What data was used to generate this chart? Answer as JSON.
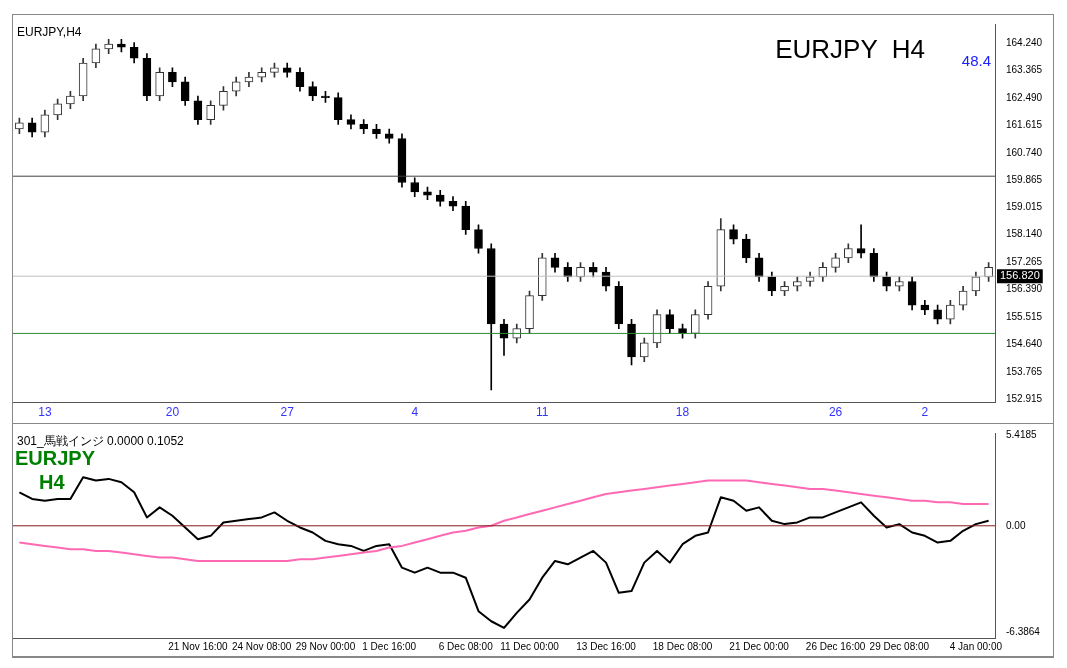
{
  "chart_data": [
    {
      "type": "candlestick",
      "title": "EURJPY  H4",
      "categories": [
        null,
        null,
        "13",
        null,
        null,
        null,
        null,
        null,
        null,
        null,
        null,
        null,
        "20",
        null,
        null,
        null,
        null,
        null,
        null,
        null,
        null,
        "27",
        null,
        null,
        null,
        null,
        null,
        null,
        null,
        null,
        null,
        "4",
        null,
        null,
        null,
        null,
        null,
        null,
        null,
        null,
        null,
        "11",
        null,
        null,
        null,
        null,
        null,
        null,
        null,
        null,
        null,
        null,
        "18",
        null,
        null,
        null,
        null,
        null,
        null,
        null,
        null,
        null,
        null,
        null,
        "26",
        null,
        null,
        null,
        null,
        null,
        null,
        "2",
        null,
        null,
        null,
        null,
        null
      ],
      "ohlc": [
        [
          161.5,
          161.85,
          161.35,
          161.7
        ],
        [
          161.7,
          161.85,
          161.25,
          161.4
        ],
        [
          161.4,
          162.1,
          161.25,
          161.95
        ],
        [
          161.95,
          162.45,
          161.8,
          162.3
        ],
        [
          162.3,
          162.7,
          162.15,
          162.55
        ],
        [
          162.55,
          163.75,
          162.4,
          163.6
        ],
        [
          163.6,
          164.2,
          163.45,
          164.05
        ],
        [
          164.05,
          164.35,
          163.9,
          164.2
        ],
        [
          164.2,
          164.35,
          163.95,
          164.1
        ],
        [
          164.1,
          164.25,
          163.6,
          163.75
        ],
        [
          163.75,
          163.9,
          162.4,
          162.55
        ],
        [
          162.55,
          163.45,
          162.4,
          163.3
        ],
        [
          163.3,
          163.45,
          162.85,
          163.0
        ],
        [
          163.0,
          163.15,
          162.25,
          162.4
        ],
        [
          162.4,
          162.55,
          161.65,
          161.8
        ],
        [
          161.8,
          162.4,
          161.65,
          162.25
        ],
        [
          162.25,
          162.85,
          162.1,
          162.7
        ],
        [
          162.7,
          163.15,
          162.55,
          163.0
        ],
        [
          163.0,
          163.3,
          162.85,
          163.15
        ],
        [
          163.15,
          163.45,
          163.0,
          163.3
        ],
        [
          163.3,
          163.6,
          163.15,
          163.45
        ],
        [
          163.45,
          163.6,
          163.15,
          163.3
        ],
        [
          163.3,
          163.45,
          162.7,
          162.85
        ],
        [
          162.85,
          163.0,
          162.4,
          162.55
        ],
        [
          162.55,
          162.7,
          162.35,
          162.5
        ],
        [
          162.5,
          162.65,
          161.65,
          161.8
        ],
        [
          161.8,
          161.95,
          161.5,
          161.65
        ],
        [
          161.65,
          161.8,
          161.35,
          161.5
        ],
        [
          161.5,
          161.65,
          161.2,
          161.35
        ],
        [
          161.35,
          161.5,
          161.05,
          161.2
        ],
        [
          161.2,
          161.35,
          159.65,
          159.8
        ],
        [
          159.8,
          159.95,
          159.35,
          159.5
        ],
        [
          159.5,
          159.65,
          159.25,
          159.4
        ],
        [
          159.4,
          159.55,
          159.05,
          159.2
        ],
        [
          159.2,
          159.35,
          158.9,
          159.05
        ],
        [
          159.05,
          159.2,
          158.15,
          158.3
        ],
        [
          158.3,
          158.45,
          157.55,
          157.7
        ],
        [
          157.7,
          157.85,
          153.2,
          155.3
        ],
        [
          155.3,
          155.45,
          154.3,
          154.85
        ],
        [
          154.85,
          155.3,
          154.7,
          155.15
        ],
        [
          155.15,
          156.35,
          155.0,
          156.2
        ],
        [
          156.2,
          157.55,
          156.05,
          157.4
        ],
        [
          157.4,
          157.55,
          156.95,
          157.1
        ],
        [
          157.1,
          157.25,
          156.65,
          156.8
        ],
        [
          156.8,
          157.25,
          156.65,
          157.1
        ],
        [
          157.1,
          157.25,
          156.8,
          156.95
        ],
        [
          156.95,
          157.1,
          156.35,
          156.5
        ],
        [
          156.5,
          156.65,
          155.15,
          155.3
        ],
        [
          155.3,
          155.45,
          154.0,
          154.25
        ],
        [
          154.25,
          154.85,
          154.1,
          154.7
        ],
        [
          154.7,
          155.75,
          154.55,
          155.6
        ],
        [
          155.6,
          155.75,
          155.0,
          155.15
        ],
        [
          155.15,
          155.3,
          154.85,
          155.0
        ],
        [
          155.0,
          155.75,
          154.85,
          155.6
        ],
        [
          155.6,
          156.65,
          155.45,
          156.5
        ],
        [
          156.5,
          158.65,
          156.35,
          158.3
        ],
        [
          158.3,
          158.45,
          157.85,
          158.0
        ],
        [
          158.0,
          158.15,
          157.25,
          157.4
        ],
        [
          157.4,
          157.55,
          156.65,
          156.8
        ],
        [
          156.8,
          156.95,
          156.2,
          156.35
        ],
        [
          156.35,
          156.65,
          156.2,
          156.5
        ],
        [
          156.5,
          156.8,
          156.35,
          156.65
        ],
        [
          156.65,
          156.95,
          156.5,
          156.8
        ],
        [
          156.8,
          157.25,
          156.65,
          157.1
        ],
        [
          157.1,
          157.55,
          156.95,
          157.4
        ],
        [
          157.4,
          157.85,
          157.25,
          157.7
        ],
        [
          157.7,
          158.45,
          157.4,
          157.55
        ],
        [
          157.55,
          157.7,
          156.65,
          156.8
        ],
        [
          156.8,
          156.95,
          156.35,
          156.5
        ],
        [
          156.5,
          156.8,
          156.35,
          156.65
        ],
        [
          156.65,
          156.8,
          155.75,
          155.9
        ],
        [
          155.9,
          156.05,
          155.6,
          155.75
        ],
        [
          155.75,
          155.9,
          155.3,
          155.45
        ],
        [
          155.45,
          156.05,
          155.3,
          155.9
        ],
        [
          155.9,
          156.5,
          155.75,
          156.35
        ],
        [
          156.35,
          156.95,
          156.2,
          156.8
        ],
        [
          156.8,
          157.25,
          156.65,
          157.1
        ]
      ],
      "ylim": [
        152.8,
        164.84
      ],
      "yticks": [
        {
          "value": 152.915,
          "label": "152.915"
        },
        {
          "value": 153.765,
          "label": "153.765"
        },
        {
          "value": 154.64,
          "label": "154.640"
        },
        {
          "value": 155.515,
          "label": "155.515"
        },
        {
          "value": 156.39,
          "label": "156.390"
        },
        {
          "value": 157.265,
          "label": "157.265"
        },
        {
          "value": 158.14,
          "label": "158.140"
        },
        {
          "value": 159.015,
          "label": "159.015"
        },
        {
          "value": 159.865,
          "label": "159.865"
        },
        {
          "value": 160.74,
          "label": "160.740"
        },
        {
          "value": 161.615,
          "label": "161.615"
        },
        {
          "value": 162.49,
          "label": "162.490"
        },
        {
          "value": 163.365,
          "label": "163.365"
        },
        {
          "value": 164.24,
          "label": "164.240"
        }
      ],
      "ref_lines": [
        {
          "axis": "y",
          "value": 160.0,
          "color": "#404040"
        },
        {
          "axis": "y",
          "value": 155.0,
          "color": "#2e8b2e"
        },
        {
          "axis": "y",
          "value": 156.82,
          "label": "156.820",
          "color": "#c0c0c0"
        }
      ],
      "annotations": [
        "EURJPY,H4",
        "48.4"
      ]
    },
    {
      "type": "line",
      "title": "EURJPY",
      "subtitle": "H4",
      "categories": [
        null,
        null,
        null,
        null,
        null,
        null,
        null,
        null,
        null,
        null,
        null,
        null,
        null,
        null,
        "21 Nov 16:00",
        null,
        null,
        null,
        null,
        "24 Nov 08:00",
        null,
        null,
        null,
        null,
        "29 Nov 00:00",
        null,
        null,
        null,
        null,
        "1 Dec 16:00",
        null,
        null,
        null,
        null,
        null,
        "6 Dec 08:00",
        null,
        null,
        null,
        null,
        "11 Dec 00:00",
        null,
        null,
        null,
        null,
        null,
        "13 Dec 16:00",
        null,
        null,
        null,
        null,
        null,
        "18 Dec 08:00",
        null,
        null,
        null,
        null,
        null,
        "21 Dec 00:00",
        null,
        null,
        null,
        null,
        null,
        "26 Dec 16:00",
        null,
        null,
        null,
        null,
        "29 Dec 08:00",
        null,
        null,
        null,
        null,
        null,
        "4 Jan 00:00",
        null
      ],
      "series": [
        {
          "color": "#ff69b4",
          "values": [
            -1.0,
            -1.1,
            -1.2,
            -1.3,
            -1.4,
            -1.4,
            -1.5,
            -1.5,
            -1.6,
            -1.7,
            -1.8,
            -1.9,
            -1.9,
            -2.0,
            -2.1,
            -2.1,
            -2.1,
            -2.1,
            -2.1,
            -2.1,
            -2.1,
            -2.1,
            -2.0,
            -2.0,
            -1.9,
            -1.8,
            -1.7,
            -1.6,
            -1.5,
            -1.3,
            -1.2,
            -1.0,
            -0.8,
            -0.6,
            -0.4,
            -0.3,
            -0.1,
            0.0,
            0.3,
            0.5,
            0.7,
            0.9,
            1.1,
            1.3,
            1.5,
            1.7,
            1.9,
            2.0,
            2.1,
            2.2,
            2.3,
            2.4,
            2.5,
            2.6,
            2.7,
            2.7,
            2.7,
            2.7,
            2.6,
            2.5,
            2.4,
            2.3,
            2.2,
            2.2,
            2.1,
            2.0,
            1.9,
            1.8,
            1.7,
            1.6,
            1.5,
            1.5,
            1.4,
            1.4,
            1.3,
            1.3,
            1.3
          ]
        },
        {
          "color": "#000000",
          "values": [
            2.0,
            1.6,
            1.5,
            1.6,
            1.6,
            2.9,
            2.7,
            2.8,
            2.6,
            2.0,
            0.5,
            1.1,
            0.6,
            -0.1,
            -0.8,
            -0.6,
            0.2,
            0.3,
            0.4,
            0.5,
            0.8,
            0.3,
            -0.1,
            -0.4,
            -0.9,
            -1.1,
            -1.2,
            -1.5,
            -1.2,
            -1.1,
            -2.5,
            -2.8,
            -2.5,
            -2.8,
            -2.8,
            -3.1,
            -5.1,
            -5.7,
            -6.1,
            -5.2,
            -4.4,
            -3.1,
            -2.1,
            -2.3,
            -1.9,
            -1.5,
            -2.2,
            -4.0,
            -3.9,
            -2.2,
            -1.5,
            -2.2,
            -1.1,
            -0.6,
            -0.4,
            1.7,
            1.5,
            0.9,
            1.1,
            0.3,
            0.1,
            0.2,
            0.5,
            0.5,
            0.8,
            1.1,
            1.4,
            0.6,
            -0.1,
            0.1,
            -0.4,
            -0.6,
            -1.0,
            -0.9,
            -0.3,
            0.1,
            0.3
          ]
        }
      ],
      "ylim": [
        -6.7,
        5.54
      ],
      "yticks": [
        {
          "value": -6.3864,
          "label": "-6.3864"
        },
        {
          "value": 0,
          "label": "0.00"
        },
        {
          "value": 5.4185,
          "label": "5.4185"
        }
      ],
      "ref_lines": [
        {
          "axis": "y",
          "value": 0,
          "color": "#8b1a1a"
        }
      ],
      "annotations": [
        "301_馬戦インジ 0.0000 0.1052"
      ]
    }
  ]
}
